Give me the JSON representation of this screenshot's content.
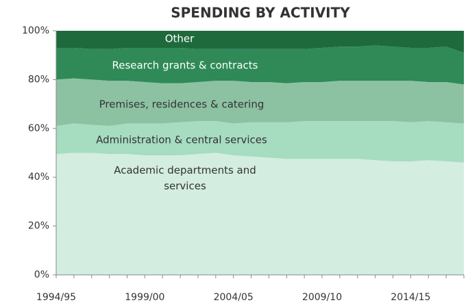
{
  "chart_data": {
    "type": "stacked-area",
    "title": "SPENDING BY ACTIVITY",
    "categories": [
      "1994/95",
      null,
      null,
      null,
      null,
      "1999/00",
      null,
      null,
      null,
      null,
      "2004/05",
      null,
      null,
      null,
      null,
      "2009/10",
      null,
      null,
      null,
      null,
      "2014/15",
      null,
      null,
      null
    ],
    "series": [
      {
        "name": "Academic departments and services",
        "color": "#d3ede0",
        "values": [
          49.5,
          50,
          50,
          49.5,
          49.5,
          49,
          49,
          49,
          49.5,
          50,
          49,
          48.5,
          48,
          47.5,
          47.5,
          47.5,
          47.5,
          47.5,
          47,
          46.5,
          46.5,
          47,
          46.5,
          46
        ]
      },
      {
        "name": "Administration & central services",
        "color": "#a6dcc0",
        "values": [
          11.5,
          12,
          11.5,
          11.5,
          12.5,
          13,
          13,
          13.5,
          13.5,
          13,
          13,
          14,
          14.5,
          15,
          15.5,
          15.5,
          15.5,
          15.5,
          16,
          16.5,
          16,
          16,
          16,
          16
        ]
      },
      {
        "name": "Premises, residences & catering",
        "color": "#8cc2a2",
        "values": [
          19,
          18.5,
          18.5,
          18.5,
          17.5,
          17,
          16.5,
          16,
          16,
          16.5,
          17.5,
          16.5,
          16.5,
          16,
          16,
          16,
          16.5,
          16.5,
          16.5,
          16.5,
          17,
          16,
          16.5,
          16
        ]
      },
      {
        "name": "Research grants & contracts",
        "color": "#2f8a57",
        "values": [
          13,
          12.5,
          12.5,
          13,
          13.5,
          14,
          14.5,
          14.5,
          13.5,
          13,
          13,
          13.5,
          13.5,
          14,
          13.5,
          14,
          14,
          14,
          14.5,
          14,
          13.5,
          14,
          14.5,
          13
        ]
      },
      {
        "name": "Other",
        "color": "#1e6a3d",
        "values": [
          7,
          7,
          7.5,
          7.5,
          7,
          7,
          7,
          7,
          7.5,
          7.5,
          7.5,
          7.5,
          7.5,
          7.5,
          7.5,
          7,
          6.5,
          6.5,
          6,
          6.5,
          7,
          7,
          6.5,
          9
        ]
      }
    ],
    "ylim": [
      0,
      100
    ],
    "yticks": [
      {
        "value": 0,
        "label": "0%"
      },
      {
        "value": 20,
        "label": "20%"
      },
      {
        "value": 40,
        "label": "40%"
      },
      {
        "value": 60,
        "label": "60%"
      },
      {
        "value": 80,
        "label": "80%"
      },
      {
        "value": 100,
        "label": "100%"
      }
    ]
  }
}
